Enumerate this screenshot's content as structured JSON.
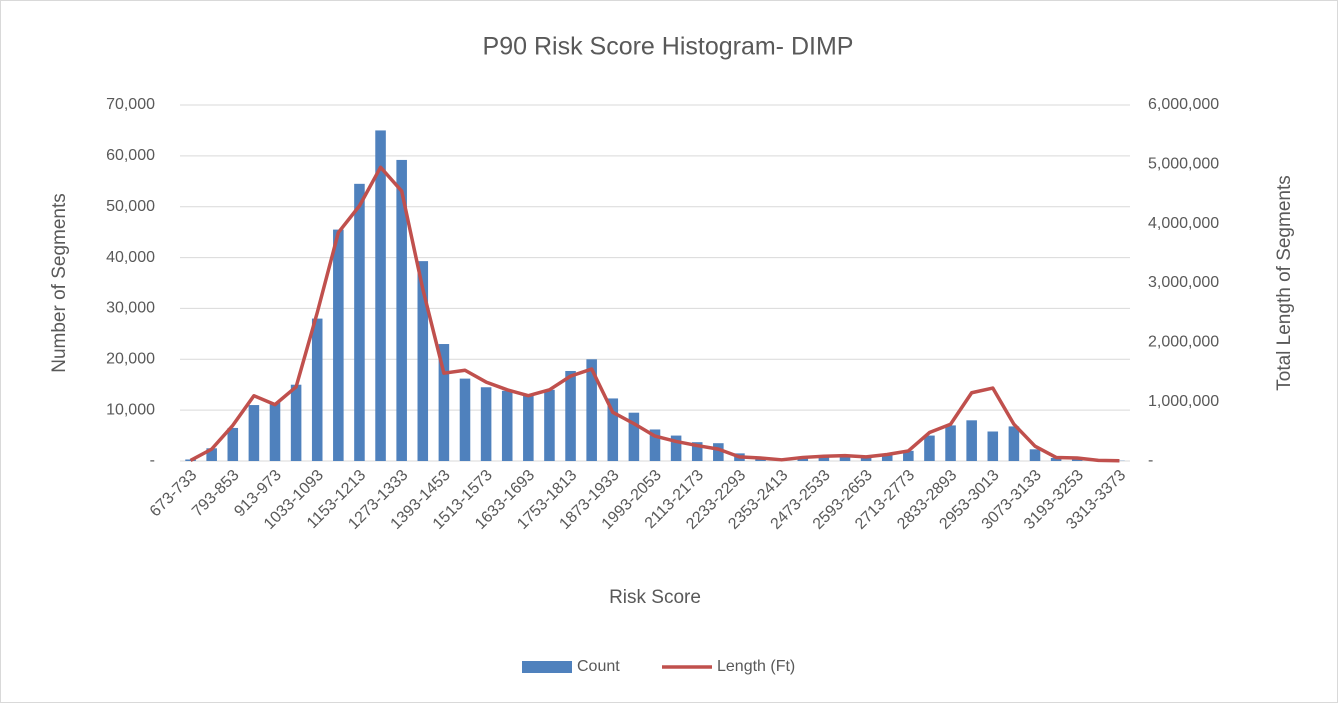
{
  "chart_data": {
    "type": "bar+line",
    "title": "P90 Risk Score Histogram- DIMP",
    "x_label": "Risk Score",
    "y_label": "Number of Segments",
    "y2_label": "Total Length of Segments",
    "categories": [
      "673-733",
      null,
      "793-853",
      null,
      "913-973",
      null,
      "1033-1093",
      null,
      "1153-1213",
      null,
      "1273-1333",
      null,
      "1393-1453",
      null,
      "1513-1573",
      null,
      "1633-1693",
      null,
      "1753-1813",
      null,
      "1873-1933",
      null,
      "1993-2053",
      null,
      "2113-2173",
      null,
      "2233-2293",
      null,
      "2353-2413",
      null,
      "2473-2533",
      null,
      "2593-2653",
      null,
      "2713-2773",
      null,
      "2833-2893",
      null,
      "2953-3013",
      null,
      "3073-3133",
      null,
      "3193-3253",
      null,
      "3313-3373"
    ],
    "series": [
      {
        "name": "Count",
        "type": "bar",
        "color": "#4f81bd",
        "axis": "y",
        "values": [
          300,
          2500,
          6500,
          11000,
          11500,
          15000,
          28000,
          45500,
          54500,
          65000,
          59200,
          39300,
          23000,
          16200,
          14500,
          13800,
          12800,
          14000,
          17700,
          20000,
          12300,
          9500,
          6200,
          5000,
          3700,
          3500,
          1500,
          600,
          300,
          600,
          800,
          1000,
          900,
          1200,
          2000,
          5000,
          7000,
          8000,
          5800,
          6800,
          2300,
          600,
          500,
          100,
          50
        ]
      },
      {
        "name": "Length (Ft)",
        "type": "line",
        "color": "#c0504d",
        "axis": "y2",
        "values": [
          10000,
          200000,
          600000,
          1100000,
          950000,
          1250000,
          2500000,
          3850000,
          4300000,
          4950000,
          4550000,
          2900000,
          1480000,
          1530000,
          1330000,
          1200000,
          1100000,
          1200000,
          1430000,
          1550000,
          820000,
          630000,
          420000,
          330000,
          260000,
          200000,
          70000,
          50000,
          20000,
          60000,
          80000,
          90000,
          70000,
          110000,
          170000,
          480000,
          620000,
          1150000,
          1230000,
          620000,
          250000,
          60000,
          50000,
          10000,
          5000
        ]
      }
    ],
    "ylim": [
      0,
      70000
    ],
    "yticks": [
      {
        "value": 0,
        "label": "-"
      },
      {
        "value": 10000,
        "label": "10,000"
      },
      {
        "value": 20000,
        "label": "20,000"
      },
      {
        "value": 30000,
        "label": "30,000"
      },
      {
        "value": 40000,
        "label": "40,000"
      },
      {
        "value": 50000,
        "label": "50,000"
      },
      {
        "value": 60000,
        "label": "60,000"
      },
      {
        "value": 70000,
        "label": "70,000"
      }
    ],
    "y2lim": [
      0,
      6000000
    ],
    "y2ticks": [
      {
        "value": 0,
        "label": "-"
      },
      {
        "value": 1000000,
        "label": "1,000,000"
      },
      {
        "value": 2000000,
        "label": "2,000,000"
      },
      {
        "value": 3000000,
        "label": "3,000,000"
      },
      {
        "value": 4000000,
        "label": "4,000,000"
      },
      {
        "value": 5000000,
        "label": "5,000,000"
      },
      {
        "value": 6000000,
        "label": "6,000,000"
      }
    ],
    "grid": true,
    "legend": "bottom"
  }
}
